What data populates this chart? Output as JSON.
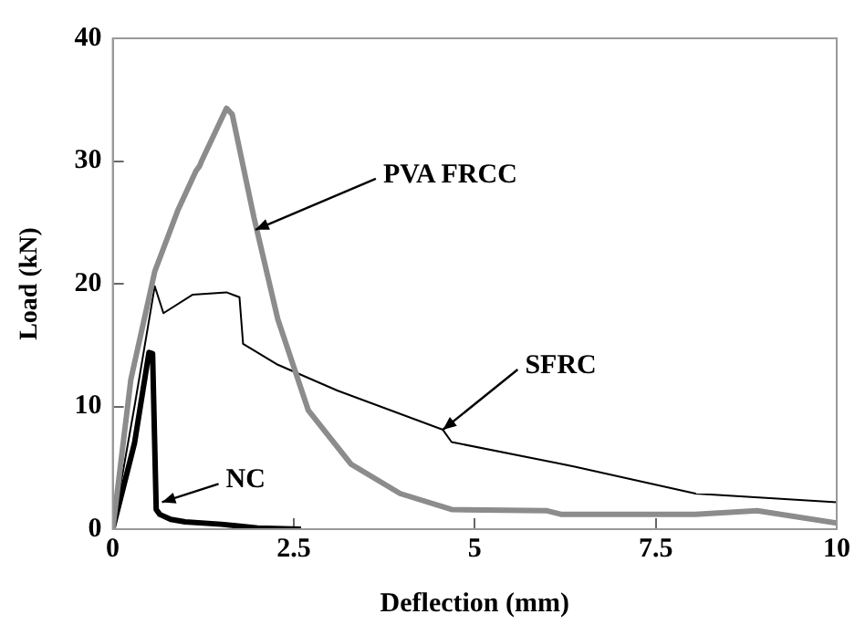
{
  "chart_data": {
    "type": "line",
    "xlabel": "Deflection (mm)",
    "ylabel": "Load (kN)",
    "xlim": [
      0,
      10
    ],
    "ylim": [
      0,
      40
    ],
    "xticks": [
      0,
      2.5,
      5,
      7.5,
      10
    ],
    "yticks": [
      0,
      10,
      20,
      30,
      40
    ],
    "grid": false,
    "legend": false,
    "marker": "none",
    "line_style": "solid",
    "annotations": [
      {
        "text": "PVA FRCC",
        "x": 1.97,
        "y": 24.4
      },
      {
        "text": "SFRC",
        "x": 4.56,
        "y": 8.1
      },
      {
        "text": "NC",
        "x": 0.68,
        "y": 2.2
      }
    ],
    "series": [
      {
        "color": "#8c8c8c",
        "x": [
          0,
          0.25,
          0.58,
          0.9,
          1.15,
          1.2,
          1.22,
          1.57,
          1.65,
          1.95,
          2.28,
          2.7,
          3.29,
          3.97,
          4.68,
          6.0,
          6.2,
          8.05,
          8.9,
          10
        ],
        "values": [
          0,
          12.2,
          21,
          26,
          29.2,
          29.6,
          29.9,
          34.3,
          33.8,
          25.4,
          17.1,
          9.7,
          5.3,
          2.9,
          1.6,
          1.5,
          1.2,
          1.2,
          1.5,
          0.5
        ]
      },
      {
        "color": "#000000",
        "x": [
          0,
          0.3,
          0.58,
          0.7,
          1.1,
          1.57,
          1.75,
          1.8,
          2.28,
          3.1,
          4.56,
          4.68,
          6.38,
          8.05,
          10
        ],
        "values": [
          0,
          10,
          19.8,
          17.6,
          19.1,
          19.3,
          18.9,
          15.1,
          13.4,
          11.3,
          8.1,
          7.1,
          5.1,
          2.9,
          2.2
        ]
      },
      {
        "color": "#000000",
        "x": [
          0,
          0.3,
          0.5,
          0.55,
          0.6,
          0.65,
          0.8,
          1,
          1.5,
          2,
          2.6
        ],
        "values": [
          0,
          7,
          14.4,
          14.3,
          1.6,
          1.2,
          0.8,
          0.6,
          0.4,
          0.1,
          0
        ]
      }
    ]
  }
}
